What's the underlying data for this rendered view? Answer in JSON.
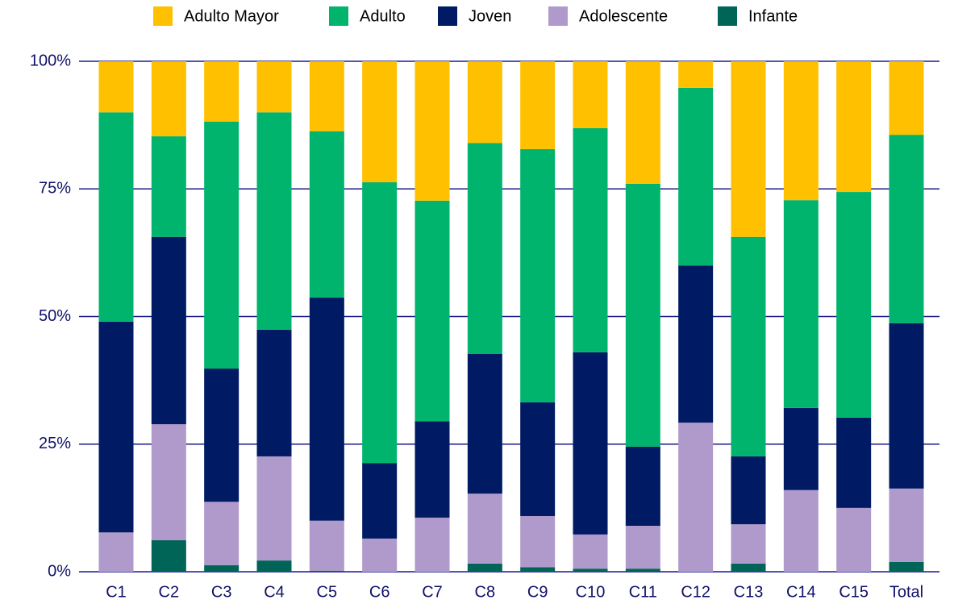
{
  "chart_data": {
    "type": "stacked_bar",
    "categories": [
      "C1",
      "C2",
      "C3",
      "C4",
      "C5",
      "C6",
      "C7",
      "C8",
      "C9",
      "C10",
      "C11",
      "C12",
      "C13",
      "C14",
      "C15",
      "Total"
    ],
    "series": [
      {
        "name": "Adulto Mayor",
        "color": "#ffc000",
        "values": [
          10,
          14.7,
          11.8,
          10,
          13.7,
          23.7,
          27.3,
          16,
          17.2,
          13.1,
          24,
          5.2,
          34.4,
          27.2,
          25.6,
          14.4
        ]
      },
      {
        "name": "Adulto",
        "color": "#00b46e",
        "values": [
          41,
          19.7,
          48.4,
          42.6,
          32.6,
          55,
          43.2,
          41.3,
          49.6,
          43.9,
          51.5,
          34.8,
          43,
          40.7,
          44.2,
          36.9
        ]
      },
      {
        "name": "Joven",
        "color": "#001a63",
        "values": [
          41.3,
          36.7,
          26.1,
          24.8,
          43.7,
          14.8,
          18.9,
          27.4,
          22.3,
          35.7,
          15.5,
          30.8,
          13.3,
          16.1,
          17.7,
          32.4
        ]
      },
      {
        "name": "Adolescente",
        "color": "#b09acb",
        "values": [
          7.7,
          22.7,
          12.4,
          20.4,
          9.8,
          6.5,
          10.6,
          13.7,
          10,
          6.7,
          8.4,
          29.2,
          7.7,
          16,
          12.5,
          14.4
        ]
      },
      {
        "name": "Infante",
        "color": "#006457",
        "values": [
          0,
          6.2,
          1.3,
          2.2,
          0.2,
          0,
          0,
          1.6,
          0.9,
          0.6,
          0.6,
          0,
          1.6,
          0,
          0,
          1.9
        ]
      }
    ],
    "ylim": [
      0,
      100
    ],
    "yticks": [
      {
        "value": 0,
        "label": "0%"
      },
      {
        "value": 25,
        "label": "25%"
      },
      {
        "value": 50,
        "label": "50%"
      },
      {
        "value": 75,
        "label": "75%"
      },
      {
        "value": 100,
        "label": "100%"
      }
    ],
    "grid": true,
    "legend": "top"
  }
}
